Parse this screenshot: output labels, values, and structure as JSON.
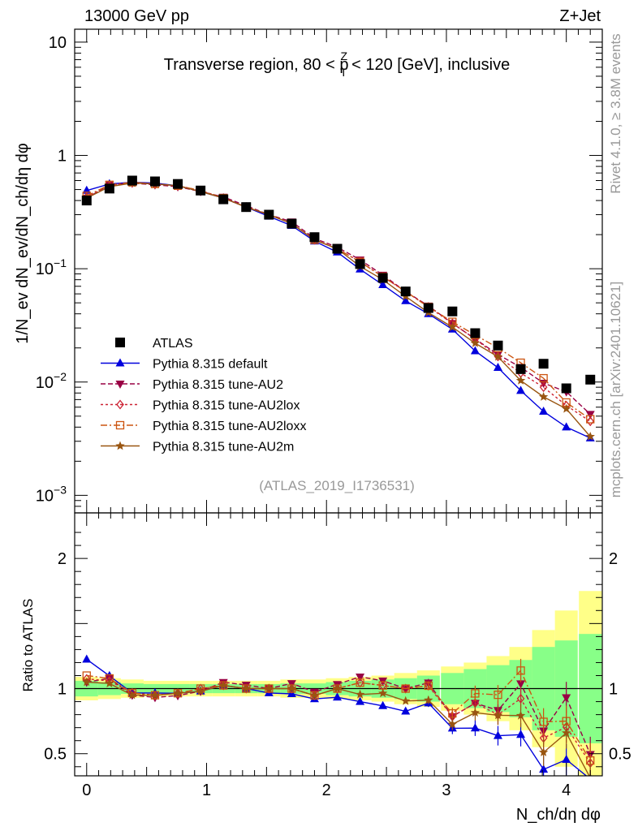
{
  "header": {
    "energy": "13000 GeV pp",
    "process": "Z+Jet",
    "panel_title": "Transverse region, 80 < p",
    "panel_title_sup": "Z",
    "panel_title_sub": "T",
    "panel_title_tail": " < 120 [GeV], inclusive",
    "analysis_tag": "(ATLAS_2019_I1736531)",
    "side_rivet": "Rivet 4.1.0, ≥ 3.8M events",
    "side_mcplots": "mcplots.cern.ch [arXiv:2401.10621]"
  },
  "axes": {
    "top_ylabel": "1/N_ev dN_ev/dN_ch/dη dφ",
    "bottom_ylabel": "Ratio to ATLAS",
    "xlabel": "N_ch/dη dφ",
    "top_yticks": [
      {
        "v": 10,
        "label": "10"
      },
      {
        "v": 1,
        "label": "1"
      },
      {
        "v": 0.1,
        "label": "10",
        "sup": "−1"
      },
      {
        "v": 0.01,
        "label": "10",
        "sup": "−2"
      },
      {
        "v": 0.001,
        "label": "10",
        "sup": "−3"
      }
    ],
    "ratio_ticks": [
      {
        "v": 2,
        "label": "2"
      },
      {
        "v": 1,
        "label": "1"
      },
      {
        "v": 0.5,
        "label": "0.5"
      }
    ],
    "x_ticks": [
      {
        "v": 0,
        "label": "0"
      },
      {
        "v": 1,
        "label": "1"
      },
      {
        "v": 2,
        "label": "2"
      },
      {
        "v": 3,
        "label": "3"
      },
      {
        "v": 4,
        "label": "4"
      }
    ]
  },
  "chart_data": {
    "type": "scatter",
    "title": "Transverse region, 80 < pT(Z) < 120 [GeV], inclusive",
    "xlabel": "Nch/dη dφ",
    "ylabel": "1/Nev dNev/dNch/dη dφ",
    "ratio_ylabel": "Ratio to ATLAS",
    "xlim": [
      -0.1,
      4.3
    ],
    "ylim": [
      0.0007,
      13
    ],
    "yscale": "log",
    "ratio_ylim": [
      0.33,
      2.35
    ],
    "x": [
      0.0,
      0.19,
      0.38,
      0.57,
      0.76,
      0.95,
      1.14,
      1.33,
      1.52,
      1.71,
      1.9,
      2.09,
      2.28,
      2.47,
      2.66,
      2.85,
      3.05,
      3.24,
      3.43,
      3.62,
      3.81,
      4.0,
      4.2
    ],
    "data": {
      "name": "ATLAS",
      "values": [
        0.4,
        0.51,
        0.6,
        0.59,
        0.56,
        0.49,
        0.41,
        0.35,
        0.3,
        0.25,
        0.19,
        0.15,
        0.11,
        0.083,
        0.063,
        0.045,
        0.042,
        0.027,
        0.021,
        0.013,
        0.0145,
        0.0088,
        0.0105
      ]
    },
    "band_stat": [
      0.06,
      0.05,
      0.04,
      0.035,
      0.035,
      0.035,
      0.035,
      0.035,
      0.035,
      0.04,
      0.04,
      0.05,
      0.06,
      0.07,
      0.08,
      0.1,
      0.12,
      0.15,
      0.18,
      0.22,
      0.32,
      0.37,
      0.42
    ],
    "band_total": [
      0.09,
      0.08,
      0.07,
      0.06,
      0.06,
      0.06,
      0.06,
      0.06,
      0.06,
      0.07,
      0.07,
      0.08,
      0.09,
      0.1,
      0.12,
      0.14,
      0.17,
      0.2,
      0.25,
      0.32,
      0.45,
      0.6,
      0.75
    ],
    "series": [
      {
        "name": "Pythia 8.315 default",
        "color": "#0000dd",
        "dash": "",
        "marker": "triangle-up",
        "values": [
          0.49,
          0.56,
          0.58,
          0.57,
          0.54,
          0.48,
          0.42,
          0.35,
          0.29,
          0.24,
          0.175,
          0.14,
          0.099,
          0.072,
          0.052,
          0.04,
          0.0292,
          0.0188,
          0.0134,
          0.0084,
          0.0055,
          0.004,
          0.0032
        ]
      },
      {
        "name": "Pythia 8.315 tune-AU2",
        "color": "#990044",
        "dash": "6,3",
        "marker": "triangle-down",
        "values": [
          0.42,
          0.55,
          0.57,
          0.55,
          0.53,
          0.48,
          0.43,
          0.36,
          0.3,
          0.26,
          0.185,
          0.155,
          0.12,
          0.088,
          0.063,
          0.047,
          0.033,
          0.024,
          0.0175,
          0.0135,
          0.0098,
          0.0082,
          0.0052
        ]
      },
      {
        "name": "Pythia 8.315 tune-AU2lox",
        "color": "#cc2233",
        "dash": "3,3",
        "marker": "diamond-open",
        "values": [
          0.43,
          0.54,
          0.58,
          0.56,
          0.54,
          0.49,
          0.42,
          0.35,
          0.3,
          0.25,
          0.18,
          0.15,
          0.115,
          0.085,
          0.063,
          0.046,
          0.033,
          0.024,
          0.0168,
          0.012,
          0.009,
          0.0062,
          0.0045
        ]
      },
      {
        "name": "Pythia 8.315 tune-AU2loxx",
        "color": "#cc5511",
        "dash": "8,3,2,3",
        "marker": "square-open",
        "values": [
          0.44,
          0.55,
          0.58,
          0.56,
          0.54,
          0.49,
          0.42,
          0.35,
          0.3,
          0.25,
          0.18,
          0.15,
          0.115,
          0.085,
          0.063,
          0.046,
          0.034,
          0.026,
          0.02,
          0.0148,
          0.0108,
          0.0066,
          0.0047
        ]
      },
      {
        "name": "Pythia 8.315 tune-AU2m",
        "color": "#995511",
        "dash": "",
        "marker": "star",
        "values": [
          0.42,
          0.53,
          0.57,
          0.56,
          0.54,
          0.48,
          0.42,
          0.35,
          0.3,
          0.25,
          0.18,
          0.15,
          0.105,
          0.08,
          0.057,
          0.041,
          0.0305,
          0.022,
          0.0167,
          0.0103,
          0.0074,
          0.0058,
          0.0033
        ]
      }
    ]
  }
}
